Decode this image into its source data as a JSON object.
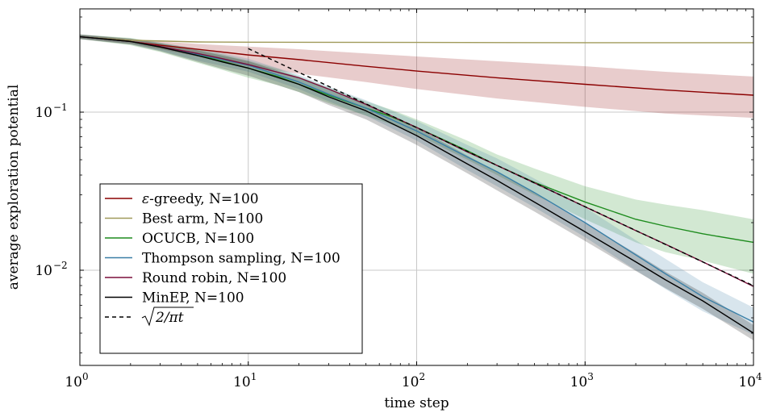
{
  "chart_data": {
    "type": "line",
    "title": "",
    "xlabel": "time step",
    "ylabel": "average exploration potential",
    "xscale": "log",
    "yscale": "log",
    "xlim": [
      1,
      10000
    ],
    "ylim": [
      0.0025,
      0.45
    ],
    "grid": true,
    "legend_position": "bottom-left",
    "x_ticks": [
      {
        "value": 1,
        "base": "10",
        "exp": "0"
      },
      {
        "value": 10,
        "base": "10",
        "exp": "1"
      },
      {
        "value": 100,
        "base": "10",
        "exp": "2"
      },
      {
        "value": 1000,
        "base": "10",
        "exp": "3"
      },
      {
        "value": 10000,
        "base": "10",
        "exp": "4"
      }
    ],
    "y_ticks": [
      {
        "value": 0.1,
        "base": "10",
        "exp": "−1"
      },
      {
        "value": 0.01,
        "base": "10",
        "exp": "−2"
      }
    ],
    "series": [
      {
        "name": "ε-greedy, N=100",
        "legend_prefix": "ε",
        "legend_rest": "-greedy, N=100",
        "color": "#8b0000",
        "dash": "",
        "band": true,
        "x": [
          1,
          2,
          3,
          5,
          7,
          10,
          20,
          50,
          100,
          300,
          1000,
          3000,
          10000
        ],
        "y": [
          0.3,
          0.28,
          0.265,
          0.25,
          0.24,
          0.23,
          0.215,
          0.195,
          0.182,
          0.165,
          0.15,
          0.138,
          0.128
        ],
        "lower": [
          0.29,
          0.27,
          0.25,
          0.225,
          0.21,
          0.195,
          0.175,
          0.155,
          0.14,
          0.122,
          0.108,
          0.098,
          0.092
        ],
        "upper": [
          0.31,
          0.29,
          0.28,
          0.27,
          0.265,
          0.26,
          0.25,
          0.235,
          0.225,
          0.21,
          0.195,
          0.18,
          0.168
        ]
      },
      {
        "name": "Best arm, N=100",
        "legend_prefix": "",
        "legend_rest": "Best arm, N=100",
        "color": "#a09a5a",
        "dash": "",
        "band": false,
        "x": [
          1,
          2,
          5,
          10,
          100,
          1000,
          10000
        ],
        "y": [
          0.3,
          0.285,
          0.278,
          0.277,
          0.276,
          0.275,
          0.275
        ]
      },
      {
        "name": "OCUCB, N=100",
        "legend_prefix": "",
        "legend_rest": "OCUCB, N=100",
        "color": "#1e8c1e",
        "dash": "",
        "band": true,
        "x": [
          1,
          2,
          3,
          5,
          7,
          10,
          15,
          20,
          30,
          50,
          70,
          100,
          200,
          300,
          500,
          1000,
          2000,
          3000,
          5000,
          10000
        ],
        "y": [
          0.3,
          0.28,
          0.258,
          0.23,
          0.21,
          0.19,
          0.168,
          0.15,
          0.128,
          0.106,
          0.094,
          0.08,
          0.057,
          0.046,
          0.036,
          0.027,
          0.021,
          0.019,
          0.017,
          0.015
        ],
        "lower": [
          0.29,
          0.265,
          0.24,
          0.205,
          0.185,
          0.165,
          0.148,
          0.134,
          0.114,
          0.095,
          0.084,
          0.072,
          0.05,
          0.04,
          0.03,
          0.021,
          0.015,
          0.013,
          0.0115,
          0.0095
        ],
        "upper": [
          0.31,
          0.295,
          0.275,
          0.25,
          0.232,
          0.212,
          0.188,
          0.168,
          0.143,
          0.117,
          0.104,
          0.09,
          0.066,
          0.054,
          0.044,
          0.034,
          0.028,
          0.026,
          0.024,
          0.021
        ]
      },
      {
        "name": "Thompson sampling, N=100",
        "legend_prefix": "",
        "legend_rest": "Thompson sampling, N=100",
        "color": "#3a7fa6",
        "dash": "",
        "band": true,
        "x": [
          1,
          2,
          3,
          5,
          7,
          10,
          20,
          30,
          50,
          100,
          200,
          300,
          500,
          1000,
          2000,
          3000,
          5000,
          10000
        ],
        "y": [
          0.3,
          0.28,
          0.26,
          0.232,
          0.215,
          0.198,
          0.155,
          0.13,
          0.106,
          0.076,
          0.052,
          0.042,
          0.031,
          0.02,
          0.0125,
          0.0095,
          0.0068,
          0.0047
        ],
        "lower": [
          0.29,
          0.27,
          0.245,
          0.212,
          0.196,
          0.18,
          0.14,
          0.117,
          0.095,
          0.066,
          0.043,
          0.034,
          0.025,
          0.0162,
          0.01,
          0.0076,
          0.0055,
          0.0039
        ],
        "upper": [
          0.31,
          0.29,
          0.275,
          0.252,
          0.236,
          0.218,
          0.172,
          0.145,
          0.119,
          0.088,
          0.062,
          0.051,
          0.038,
          0.025,
          0.0155,
          0.0118,
          0.0084,
          0.0058
        ]
      },
      {
        "name": "Round robin, N=100",
        "legend_prefix": "",
        "legend_rest": "Round robin, N=100",
        "color": "#7a0e3a",
        "dash": "",
        "band": false,
        "x": [
          1,
          2,
          3,
          5,
          7,
          10,
          20,
          30,
          50,
          100,
          200,
          300,
          500,
          1000,
          2000,
          3000,
          5000,
          10000
        ],
        "y": [
          0.3,
          0.28,
          0.26,
          0.235,
          0.218,
          0.2,
          0.165,
          0.14,
          0.112,
          0.08,
          0.056,
          0.046,
          0.0357,
          0.0252,
          0.0178,
          0.0146,
          0.0113,
          0.0079
        ]
      },
      {
        "name": "MinEP, N=100",
        "legend_prefix": "",
        "legend_rest": "MinEP, N=100",
        "color": "#000000",
        "dash": "",
        "band": true,
        "x": [
          1,
          2,
          3,
          5,
          7,
          10,
          20,
          30,
          50,
          100,
          200,
          300,
          500,
          1000,
          2000,
          3000,
          5000,
          10000
        ],
        "y": [
          0.3,
          0.28,
          0.258,
          0.228,
          0.208,
          0.19,
          0.15,
          0.125,
          0.102,
          0.071,
          0.047,
          0.037,
          0.027,
          0.0175,
          0.0113,
          0.0087,
          0.0064,
          0.004
        ],
        "lower": [
          0.29,
          0.268,
          0.243,
          0.208,
          0.188,
          0.17,
          0.134,
          0.111,
          0.09,
          0.062,
          0.041,
          0.032,
          0.0235,
          0.0153,
          0.0099,
          0.0077,
          0.0057,
          0.0036
        ],
        "upper": [
          0.31,
          0.292,
          0.272,
          0.246,
          0.228,
          0.21,
          0.166,
          0.139,
          0.114,
          0.08,
          0.053,
          0.042,
          0.0307,
          0.0198,
          0.0128,
          0.0098,
          0.0072,
          0.0045
        ]
      },
      {
        "name": "√(2/πt)",
        "legend_prefix": "",
        "legend_rest": "",
        "legend_math": true,
        "color": "#000000",
        "dash": "5,4",
        "band": false,
        "formula": "sqrt(2/(pi*t))",
        "x_range": [
          10,
          10000
        ]
      }
    ]
  }
}
